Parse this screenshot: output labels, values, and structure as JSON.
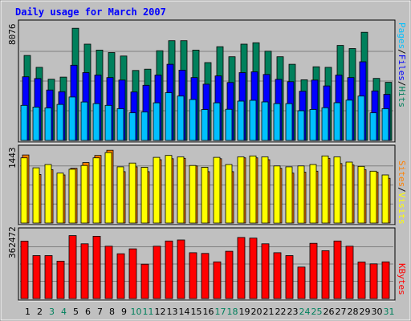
{
  "title": "Daily usage for March 2007",
  "legends": {
    "top": [
      "Pages",
      "/",
      "Files",
      "/",
      "Hits"
    ],
    "mid": [
      "Sites",
      "/",
      "Visits"
    ],
    "bottom": [
      "KBytes"
    ]
  },
  "colors": {
    "hits": "#00805c",
    "files": "#0000ff",
    "pages": "#00c0ff",
    "visits": "#ffff00",
    "sites": "#ff8000",
    "kbytes": "#ff0000",
    "title": "#0000ff",
    "weekend_day": "#00805c"
  },
  "chart_data": [
    {
      "type": "bar",
      "panel": "top",
      "y_tick_label": "8076",
      "categories": [
        "1",
        "2",
        "3",
        "4",
        "5",
        "6",
        "7",
        "8",
        "9",
        "10",
        "11",
        "12",
        "13",
        "14",
        "15",
        "16",
        "17",
        "18",
        "19",
        "20",
        "21",
        "22",
        "23",
        "24",
        "25",
        "26",
        "27",
        "28",
        "29",
        "30",
        "31"
      ],
      "series": [
        {
          "name": "Hits",
          "values": [
            6440,
            5540,
            4640,
            4800,
            8500,
            7300,
            6850,
            6660,
            6400,
            5300,
            5400,
            6800,
            7560,
            7560,
            6850,
            5900,
            7100,
            6340,
            7300,
            7400,
            6760,
            6340,
            5770,
            4600,
            5580,
            5540,
            7200,
            6960,
            8200,
            4700,
            4400
          ]
        },
        {
          "name": "Files",
          "values": [
            4820,
            4690,
            3820,
            3690,
            5700,
            5140,
            4950,
            4760,
            4570,
            3670,
            4180,
            4950,
            5770,
            5330,
            4760,
            4260,
            4890,
            4390,
            5140,
            5200,
            5000,
            4630,
            4450,
            3730,
            4570,
            4130,
            4950,
            4760,
            5960,
            3750,
            3490
          ]
        },
        {
          "name": "Pages",
          "values": [
            2660,
            2530,
            2470,
            2730,
            3290,
            2910,
            2790,
            2660,
            2410,
            2090,
            2160,
            2850,
            3620,
            3360,
            3100,
            2340,
            2850,
            2360,
            2980,
            3040,
            2920,
            2790,
            2790,
            2250,
            2350,
            2480,
            2860,
            3050,
            3360,
            2090,
            2410
          ]
        }
      ]
    },
    {
      "type": "bar",
      "panel": "middle",
      "y_tick_label": "1443",
      "categories": [
        "1",
        "2",
        "3",
        "4",
        "5",
        "6",
        "7",
        "8",
        "9",
        "10",
        "11",
        "12",
        "13",
        "14",
        "15",
        "16",
        "17",
        "18",
        "19",
        "20",
        "21",
        "22",
        "23",
        "24",
        "25",
        "26",
        "27",
        "28",
        "29",
        "30",
        "31"
      ],
      "series": [
        {
          "name": "Visits",
          "values": [
            1370,
            1160,
            1230,
            1050,
            1130,
            1210,
            1370,
            1480,
            1180,
            1260,
            1170,
            1380,
            1420,
            1390,
            1210,
            1170,
            1380,
            1230,
            1390,
            1410,
            1390,
            1200,
            1180,
            1200,
            1230,
            1410,
            1390,
            1280,
            1190,
            1090,
            1010
          ]
        },
        {
          "name": "Sites",
          "values": [
            1430,
            1020,
            1120,
            1010,
            1150,
            1270,
            1420,
            1530,
            1080,
            1180,
            1080,
            1330,
            1350,
            1360,
            1200,
            1080,
            1350,
            1080,
            1370,
            1370,
            1330,
            1150,
            1050,
            1070,
            1090,
            1360,
            1250,
            1220,
            1120,
            1070,
            940
          ]
        }
      ]
    },
    {
      "type": "bar",
      "panel": "bottom",
      "y_tick_label": "362472",
      "categories": [
        "1",
        "2",
        "3",
        "4",
        "5",
        "6",
        "7",
        "8",
        "9",
        "10",
        "11",
        "12",
        "13",
        "14",
        "15",
        "16",
        "17",
        "18",
        "19",
        "20",
        "21",
        "22",
        "23",
        "24",
        "25",
        "26",
        "27",
        "28",
        "29",
        "30",
        "31"
      ],
      "series": [
        {
          "name": "KBytes",
          "values": [
            341000,
            255000,
            255000,
            222000,
            374000,
            325000,
            370000,
            311000,
            266000,
            295000,
            204000,
            311000,
            342000,
            348000,
            272000,
            268000,
            218000,
            281000,
            363000,
            359000,
            325000,
            272000,
            255000,
            187000,
            328000,
            284000,
            342000,
            311000,
            217000,
            206000,
            218000
          ]
        }
      ]
    }
  ],
  "weekend_days": [
    "3",
    "4",
    "10",
    "11",
    "17",
    "18",
    "24",
    "25",
    "31"
  ]
}
